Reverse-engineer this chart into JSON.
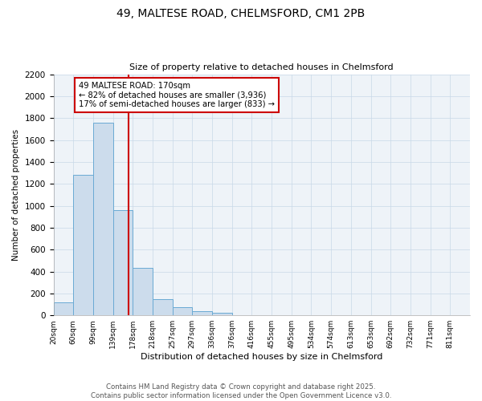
{
  "title1": "49, MALTESE ROAD, CHELMSFORD, CM1 2PB",
  "title2": "Size of property relative to detached houses in Chelmsford",
  "xlabel": "Distribution of detached houses by size in Chelmsford",
  "ylabel": "Number of detached properties",
  "bins": [
    "20sqm",
    "60sqm",
    "99sqm",
    "139sqm",
    "178sqm",
    "218sqm",
    "257sqm",
    "297sqm",
    "336sqm",
    "376sqm",
    "416sqm",
    "455sqm",
    "495sqm",
    "534sqm",
    "574sqm",
    "613sqm",
    "653sqm",
    "692sqm",
    "732sqm",
    "771sqm",
    "811sqm"
  ],
  "values": [
    115,
    1280,
    1760,
    960,
    430,
    150,
    75,
    40,
    20,
    0,
    0,
    0,
    0,
    0,
    0,
    0,
    0,
    0,
    0,
    0,
    0
  ],
  "bar_color": "#ccdcec",
  "bar_edge_color": "#6aaad4",
  "grid_color": "#c8d8e8",
  "bg_color": "#eef3f8",
  "property_line_color": "#cc0000",
  "annotation_text": "49 MALTESE ROAD: 170sqm\n← 82% of detached houses are smaller (3,936)\n17% of semi-detached houses are larger (833) →",
  "annotation_box_color": "#cc0000",
  "ylim": [
    0,
    2200
  ],
  "yticks": [
    0,
    200,
    400,
    600,
    800,
    1000,
    1200,
    1400,
    1600,
    1800,
    2000,
    2200
  ],
  "footer1": "Contains HM Land Registry data © Crown copyright and database right 2025.",
  "footer2": "Contains public sector information licensed under the Open Government Licence v3.0."
}
